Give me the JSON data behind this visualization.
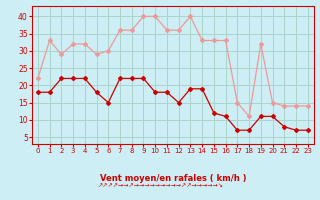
{
  "x": [
    0,
    1,
    2,
    3,
    4,
    5,
    6,
    7,
    8,
    9,
    10,
    11,
    12,
    13,
    14,
    15,
    16,
    17,
    18,
    19,
    20,
    21,
    22,
    23
  ],
  "wind_avg": [
    18,
    18,
    22,
    22,
    22,
    18,
    15,
    22,
    22,
    22,
    18,
    18,
    15,
    19,
    19,
    12,
    11,
    7,
    7,
    11,
    11,
    8,
    7,
    7
  ],
  "wind_gust": [
    22,
    33,
    29,
    32,
    32,
    29,
    30,
    36,
    36,
    40,
    40,
    36,
    36,
    40,
    33,
    33,
    33,
    15,
    11,
    32,
    15,
    14,
    14,
    14
  ],
  "bg_color": "#cdeef4",
  "grid_color": "#aad4cc",
  "line_avg_color": "#cc0000",
  "line_gust_color": "#ee9999",
  "xlabel": "Vent moyen/en rafales ( km/h )",
  "ylabel_ticks": [
    5,
    10,
    15,
    20,
    25,
    30,
    35,
    40
  ],
  "ylim": [
    3,
    43
  ],
  "xlim": [
    -0.5,
    23.5
  ],
  "arrows": "↗↗↗↗→→↗→→→→→→→→→↗↗→→→→→↘"
}
